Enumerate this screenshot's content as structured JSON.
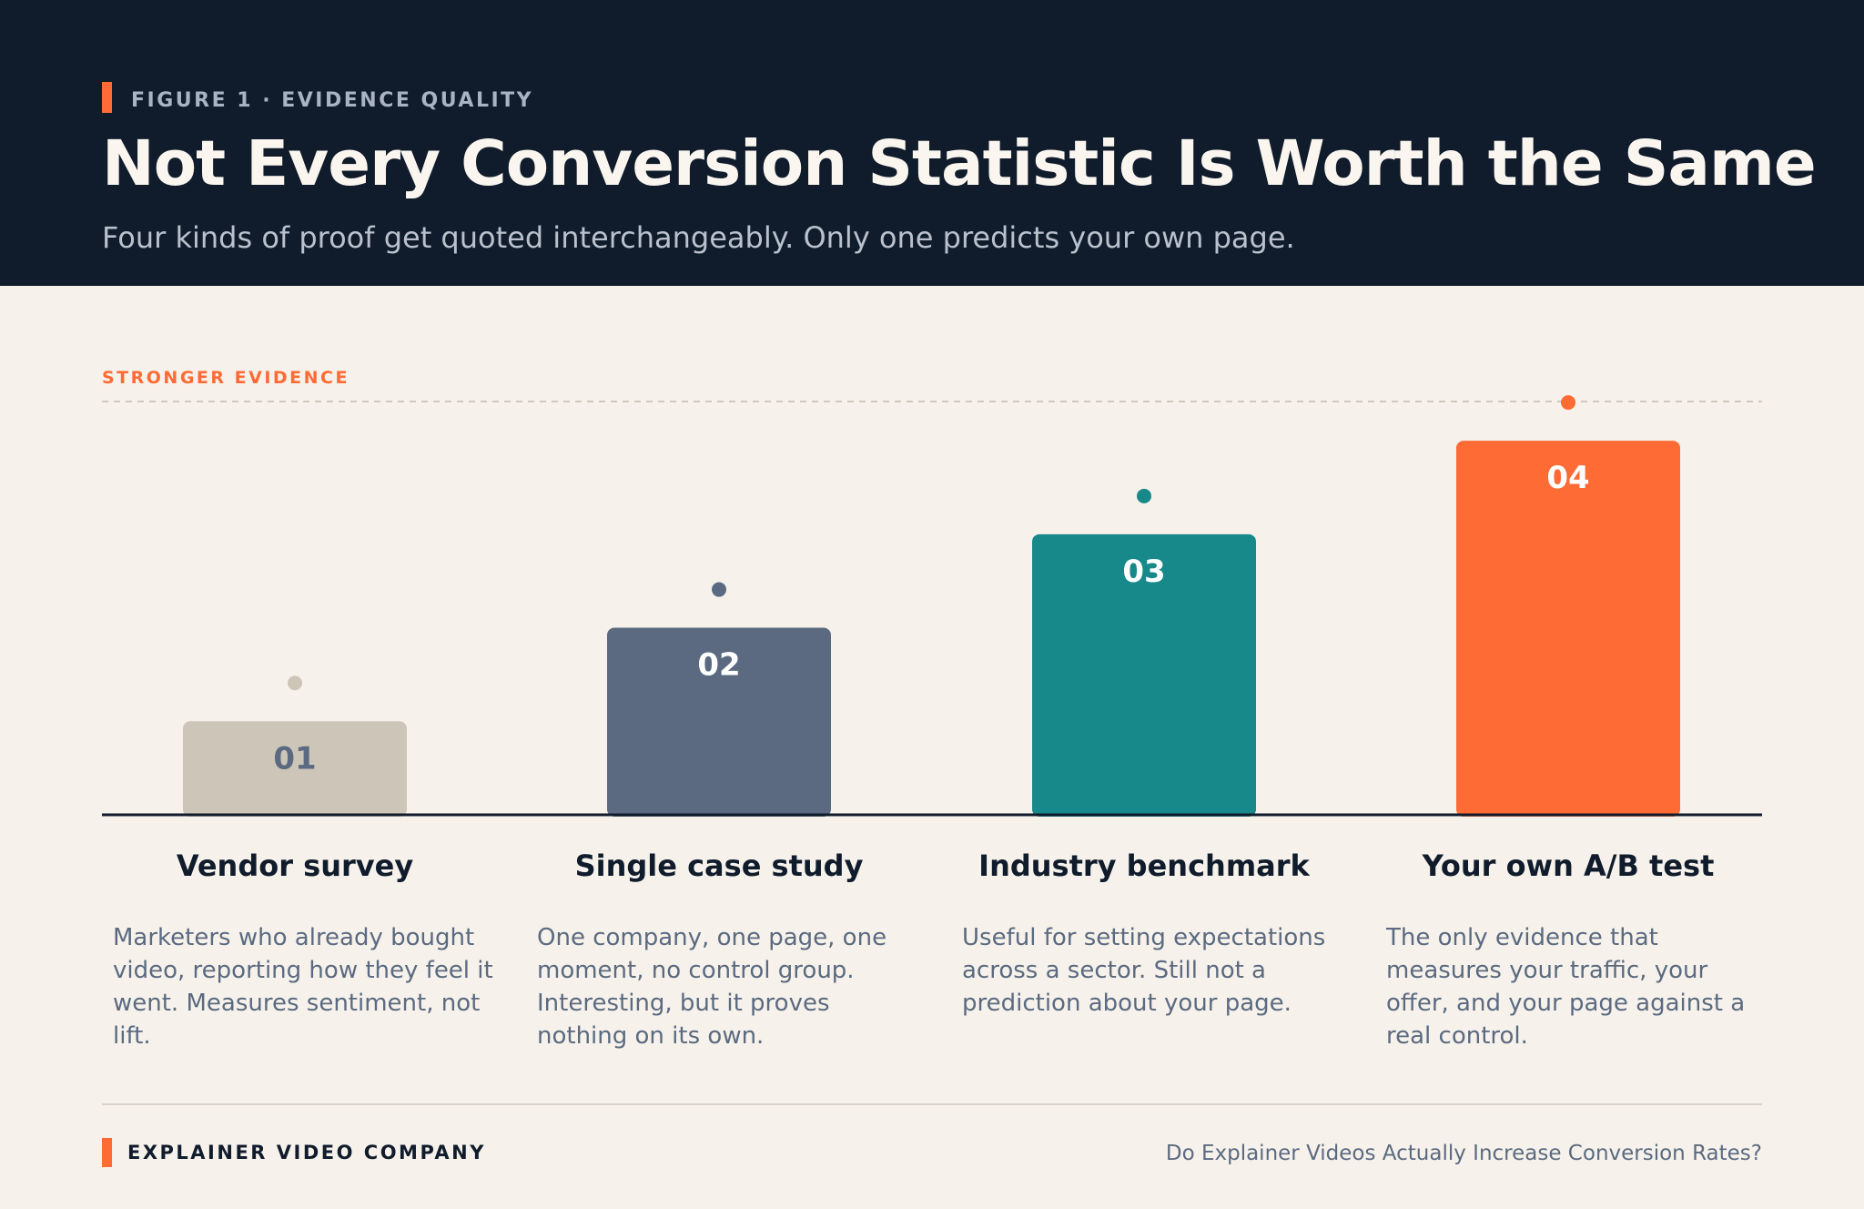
{
  "header": {
    "kicker": "FIGURE 1 · EVIDENCE QUALITY",
    "title": "Not Every Conversion Statistic Is Worth the Same",
    "subtitle": "Four kinds of proof get quoted interchangeably. Only one predicts your own page."
  },
  "chart_data": {
    "type": "bar",
    "axis_label": "STRONGER EVIDENCE",
    "categories": [
      "Vendor survey",
      "Single case study",
      "Industry benchmark",
      "Your own A/B test"
    ],
    "bar_labels": [
      "01",
      "02",
      "03",
      "04"
    ],
    "values": [
      1,
      2,
      3,
      4
    ],
    "descriptions": [
      "Marketers who already bought video, reporting how they feel it went. Measures sentiment, not lift.",
      "One company, one page, one moment, no control group. Interesting, but it proves nothing on its own.",
      "Useful for setting expectations across a sector. Still not a prediction about your page.",
      "The only evidence that measures your traffic, your offer, and your page against a real control."
    ],
    "colors": [
      "#cdc5b8",
      "#5b6a80",
      "#17898b",
      "#ff6b35"
    ],
    "label_colors": [
      "#5b6a80",
      "#ffffff",
      "#ffffff",
      "#ffffff"
    ],
    "ylim": [
      0,
      4.4
    ]
  },
  "footer": {
    "brand": "EXPLAINER VIDEO COMPANY",
    "title": "Do Explainer Videos Actually Increase Conversion Rates?"
  }
}
